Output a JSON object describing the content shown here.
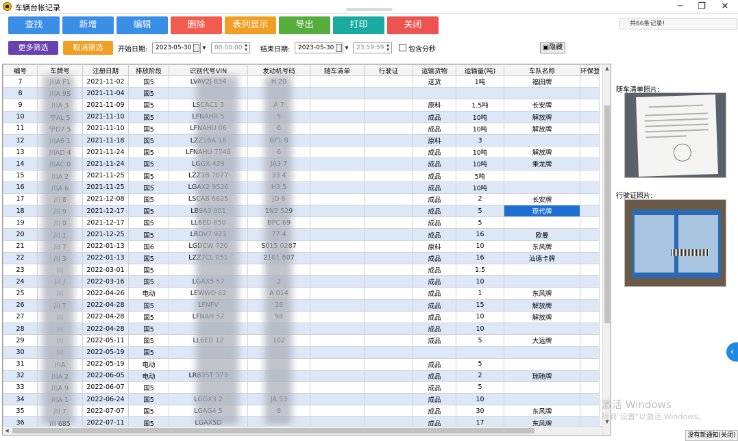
{
  "window": {
    "title": "车辆台帐记录",
    "minimize": "─",
    "restore": "❐",
    "close": "✕"
  },
  "toolbar": {
    "buttons": [
      {
        "label": "查找",
        "color": "#3a8ee6"
      },
      {
        "label": "新增",
        "color": "#3a8ee6"
      },
      {
        "label": "编辑",
        "color": "#3a8ee6"
      },
      {
        "label": "删除",
        "color": "#f05c50"
      },
      {
        "label": "表列显示",
        "color": "#ef9f24"
      },
      {
        "label": "导出",
        "color": "#55ad3b"
      },
      {
        "label": "打印",
        "color": "#1aaaa0"
      },
      {
        "label": "关闭",
        "color": "#ec5452"
      }
    ],
    "records": "共66条记录!"
  },
  "filter": {
    "more_label": "更多筛选",
    "cancel_label": "取消筛选",
    "start_label": "开始日期:",
    "start_date": "2023-05-30",
    "start_time": "00:00:00",
    "end_label": "结束日期:",
    "end_date": "2023-05-30",
    "end_time": "23:59:59",
    "include_seconds_label": "包含分秒",
    "hide_label": "隐藏"
  },
  "table": {
    "columns": [
      "编号",
      "车牌号",
      "注册日期",
      "排放阶段",
      "识别代号VIN",
      "发动机号码",
      "随车清单",
      "行驶证",
      "运输货物",
      "运输量(吨)",
      "车队名称",
      "环保登"
    ],
    "rows": [
      [
        "7",
        "川A  F1",
        "2021-11-02",
        "国5",
        "LVAV2J  834",
        "H  20",
        "",
        "",
        "送货",
        "1吨",
        "福田牌",
        ""
      ],
      [
        "8",
        "川A  9S",
        "2021-11-04",
        "国5",
        "",
        "",
        "",
        "",
        "",
        "",
        "",
        ""
      ],
      [
        "9",
        "川A  3",
        "2021-11-09",
        "国5",
        "LSCAC1  3",
        "A  7",
        "",
        "",
        "原料",
        "1.5吨",
        "长安牌",
        ""
      ],
      [
        "10",
        "宁AL  5",
        "2021-11-10",
        "国5",
        "LFNAHR  5",
        "5",
        "",
        "",
        "成品",
        "10吨",
        "解放牌",
        ""
      ],
      [
        "11",
        "宁D7  5",
        "2021-11-10",
        "国5",
        "LFNAHU  06",
        "6",
        "",
        "",
        "成品",
        "10吨",
        "解放牌",
        ""
      ],
      [
        "12",
        "川A6  1",
        "2021-11-18",
        "国5",
        "LZZ1BA  16",
        "BF1  8",
        "",
        "",
        "原料",
        "3",
        "",
        ""
      ],
      [
        "13",
        "川AD  4",
        "2021-11-24",
        "国5",
        "LFNAHU  7748",
        "6",
        "",
        "",
        "成品",
        "10吨",
        "解放牌",
        ""
      ],
      [
        "14",
        "川AC  0",
        "2021-11-24",
        "国5",
        "LGGX  429",
        "JA3  7",
        "",
        "",
        "成品",
        "10吨",
        "乘龙牌",
        ""
      ],
      [
        "15",
        "川A  2",
        "2021-11-25",
        "国5",
        "LZZ1B  7077",
        "33  4",
        "",
        "",
        "成品",
        "5吨",
        "",
        ""
      ],
      [
        "16",
        "川A  6",
        "2021-11-25",
        "国5",
        "LGAX2  9526",
        "H3  5",
        "",
        "",
        "成品",
        "10吨",
        "",
        ""
      ],
      [
        "17",
        "川  8",
        "2021-12-08",
        "国5",
        "LSCAB  6825",
        "JD  6",
        "",
        "",
        "成品",
        "2",
        "长安牌",
        ""
      ],
      [
        "18",
        "川  9",
        "2021-12-17",
        "国5",
        "LB9A3  001",
        "1N2  529",
        "",
        "",
        "成品",
        "5",
        "现代牌",
        ""
      ],
      [
        "19",
        "川  0",
        "2021-12-17",
        "国5",
        "LL6ED  850",
        "BPC  69",
        "",
        "",
        "成品",
        "5",
        "",
        ""
      ],
      [
        "20",
        "川  1",
        "2021-12-25",
        "国5",
        "LRDV7  923",
        "77  4",
        "",
        "",
        "成品",
        "16",
        "欧曼",
        ""
      ],
      [
        "21",
        "川  7",
        "2022-01-13",
        "国6",
        "LGDCW  720",
        "S015  0287",
        "",
        "",
        "原料",
        "10",
        "东风牌",
        ""
      ],
      [
        "22",
        "川  3",
        "2022-01-13",
        "国5",
        "LZZ7CL  051",
        "2101  807",
        "",
        "",
        "成品",
        "16",
        "汕德卡牌",
        ""
      ],
      [
        "23",
        "川  ",
        "2022-03-01",
        "国5",
        "",
        "",
        "",
        "",
        "成品",
        "1.5",
        "",
        ""
      ],
      [
        "24",
        "川  /",
        "2022-03-16",
        "国5",
        "LGAX5  57",
        "  2",
        "",
        "",
        "成品",
        "10",
        "",
        ""
      ],
      [
        "25",
        "川  ",
        "2022-04-26",
        "电动",
        "LEWWD  62",
        "A  014",
        "",
        "",
        "成品",
        "1",
        "东风牌",
        ""
      ],
      [
        "26",
        "川  T",
        "2022-04-28",
        "国5",
        "LFNFV  ",
        "  28",
        "",
        "",
        "成品",
        "15",
        "解放牌",
        ""
      ],
      [
        "27",
        "川  ",
        "2022-04-28",
        "国5",
        "LFNAH  52",
        "  98",
        "",
        "",
        "成品",
        "10",
        "解放牌",
        ""
      ],
      [
        "28",
        "川  ",
        "2022-04-28",
        "国5",
        "",
        "",
        "",
        "",
        "成品",
        "10",
        "",
        ""
      ],
      [
        "29",
        "川  ",
        "2022-05-11",
        "国5",
        "LL6ED  12",
        "  102",
        "",
        "",
        "成品",
        "5",
        "大运牌",
        ""
      ],
      [
        "30",
        "川  ",
        "2022-05-19",
        "国5",
        "",
        "",
        "",
        "",
        "",
        "",
        "",
        ""
      ],
      [
        "31",
        "川A  ",
        "2022-05-19",
        "电动",
        "",
        "",
        "",
        "",
        "成品",
        "5",
        "",
        ""
      ],
      [
        "32",
        "川A  2",
        "2022-06-05",
        "电动",
        "LR83ST  373",
        "",
        "",
        "",
        "成品",
        "2",
        "瑞驰牌",
        ""
      ],
      [
        "33",
        "川A  9",
        "2022-06-07",
        "国5",
        "",
        "",
        "",
        "",
        "成品",
        "5",
        "",
        ""
      ],
      [
        "34",
        "川A  1",
        "2022-06-24",
        "国5",
        "LGGX3  2",
        "JA  53",
        "",
        "",
        "成品",
        "10",
        "",
        ""
      ],
      [
        "35",
        "川  7",
        "2022-07-07",
        "国5",
        "LGAG4  5",
        "8  ",
        "",
        "",
        "成品",
        "30",
        "东风牌",
        ""
      ],
      [
        "36",
        "川  685",
        "2022-07-11",
        "国5",
        "LGAX5D  ",
        "",
        "",
        "",
        "成品",
        "17",
        "东风牌",
        ""
      ]
    ]
  },
  "side": {
    "list_photo_label": "随车清单照片:",
    "license_photo_label": "行驶证照片:"
  },
  "overlay": {
    "activate_title": "激活 Windows",
    "activate_hint": "转到\"设置\"以激活 Windows。",
    "notify": "没有新通知(关闭)",
    "expand_icon": "‹"
  }
}
